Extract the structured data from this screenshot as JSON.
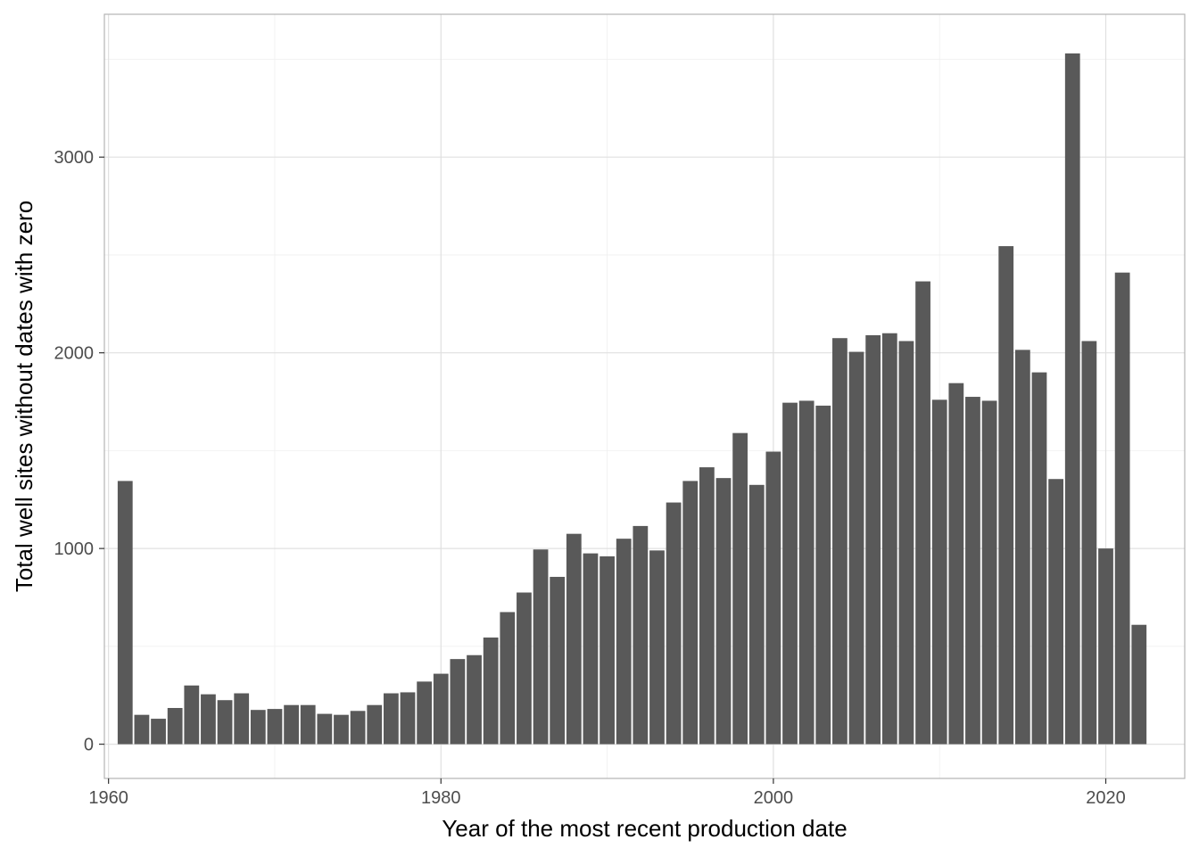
{
  "chart_data": {
    "type": "bar",
    "title": "",
    "xlabel": "Year of the most recent production date",
    "ylabel": "Total well sites without dates with zero",
    "x": [
      1961,
      1962,
      1963,
      1964,
      1965,
      1966,
      1967,
      1968,
      1969,
      1970,
      1971,
      1972,
      1973,
      1974,
      1975,
      1976,
      1977,
      1978,
      1979,
      1980,
      1981,
      1982,
      1983,
      1984,
      1985,
      1986,
      1987,
      1988,
      1989,
      1990,
      1991,
      1992,
      1993,
      1994,
      1995,
      1996,
      1997,
      1998,
      1999,
      2000,
      2001,
      2002,
      2003,
      2004,
      2005,
      2006,
      2007,
      2008,
      2009,
      2010,
      2011,
      2012,
      2013,
      2014,
      2015,
      2016,
      2017,
      2018,
      2019,
      2020,
      2021,
      2022
    ],
    "values": [
      1345,
      150,
      130,
      185,
      300,
      255,
      225,
      260,
      175,
      180,
      200,
      200,
      155,
      150,
      170,
      200,
      260,
      265,
      320,
      360,
      435,
      455,
      545,
      675,
      775,
      995,
      855,
      1075,
      975,
      960,
      1050,
      1115,
      990,
      1235,
      1345,
      1415,
      1360,
      1590,
      1325,
      1495,
      1745,
      1755,
      1730,
      2075,
      2005,
      2090,
      2100,
      2060,
      2365,
      1760,
      1845,
      1775,
      1755,
      2545,
      2015,
      1900,
      1355,
      3530,
      2060,
      1000,
      2410,
      610
    ],
    "xlim": [
      1959.75,
      2024.75
    ],
    "ylim": [
      -175,
      3730
    ],
    "x_ticks": [
      "1960",
      "1980",
      "2000",
      "2020"
    ],
    "y_ticks": [
      "0",
      "1000",
      "2000",
      "3000"
    ],
    "grid": true,
    "bar_color": "#595959",
    "legend": "none"
  }
}
